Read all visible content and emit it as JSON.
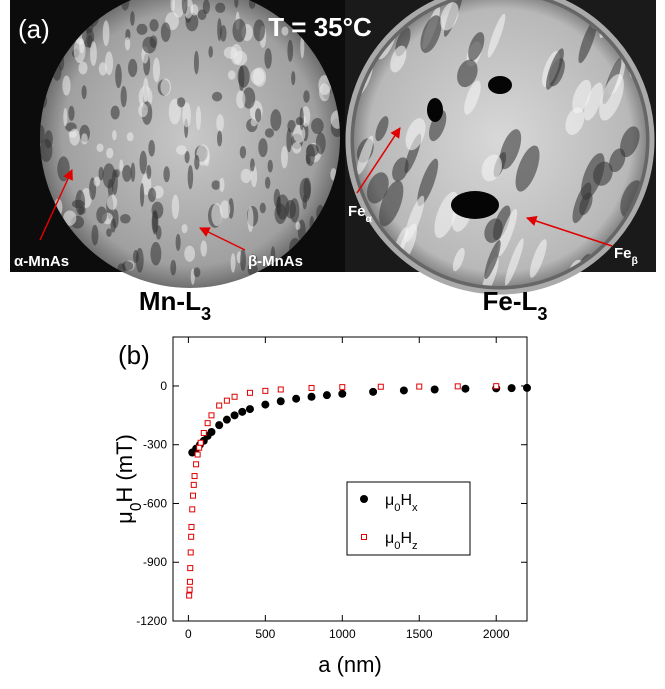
{
  "panel_a": {
    "label": "(a)",
    "temperature": "T = 35°C",
    "left_image": {
      "arrow_labels": [
        [
          {
            "t": "α-MnAs"
          }
        ],
        [
          {
            "t": "β-MnAs"
          }
        ]
      ],
      "caption": [
        {
          "t": "Mn-L"
        },
        {
          "t": "3",
          "sub": true
        }
      ]
    },
    "right_image": {
      "arrow_labels": [
        [
          {
            "t": "Fe"
          },
          {
            "t": "α",
            "sub": true
          }
        ],
        [
          {
            "t": "Fe"
          },
          {
            "t": "β",
            "sub": true
          }
        ]
      ],
      "caption": [
        {
          "t": "Fe-L"
        },
        {
          "t": "3",
          "sub": true
        }
      ]
    }
  },
  "panel_b": {
    "label": "(b)"
  },
  "chart_data": {
    "type": "scatter",
    "x_label": [
      {
        "t": "a (nm)"
      }
    ],
    "y_label": [
      {
        "t": "μ"
      },
      {
        "t": "0",
        "sub": true
      },
      {
        "t": "H (mT)"
      }
    ],
    "xlim": [
      -100,
      2200
    ],
    "xticks": [
      0,
      500,
      1000,
      1500,
      2000
    ],
    "ylim": [
      -1200,
      250
    ],
    "yticks": [
      0,
      -300,
      -600,
      -900,
      -1200
    ],
    "series": [
      {
        "name": [
          {
            "t": "μ"
          },
          {
            "t": "0",
            "sub": true
          },
          {
            "t": "H"
          },
          {
            "t": "x",
            "sub": true
          }
        ],
        "color": "#000000",
        "marker": "filled-circle",
        "x": [
          25,
          50,
          75,
          100,
          125,
          150,
          200,
          250,
          300,
          350,
          400,
          500,
          600,
          700,
          800,
          900,
          1000,
          1200,
          1400,
          1600,
          1800,
          2000,
          2100,
          2200
        ],
        "values": [
          -340,
          -320,
          -300,
          -280,
          -255,
          -235,
          -200,
          -172,
          -150,
          -132,
          -118,
          -95,
          -78,
          -65,
          -55,
          -47,
          -40,
          -30,
          -23,
          -18,
          -14,
          -12,
          -11,
          -10
        ]
      },
      {
        "name": [
          {
            "t": "μ"
          },
          {
            "t": "0",
            "sub": true
          },
          {
            "t": "H"
          },
          {
            "t": "z",
            "sub": true
          }
        ],
        "color": "#e00000",
        "marker": "open-square",
        "x": [
          5,
          8,
          10,
          12,
          15,
          18,
          20,
          25,
          30,
          35,
          40,
          50,
          60,
          70,
          80,
          100,
          125,
          150,
          200,
          250,
          300,
          400,
          500,
          600,
          800,
          1000,
          1250,
          1500,
          1750,
          2000
        ],
        "values": [
          -1070,
          -1040,
          -1000,
          -930,
          -850,
          -770,
          -720,
          -630,
          -560,
          -505,
          -460,
          -400,
          -350,
          -315,
          -290,
          -240,
          -190,
          -150,
          -100,
          -75,
          -55,
          -35,
          -25,
          -18,
          -10,
          -6,
          -4,
          -3,
          -2,
          -1
        ]
      }
    ],
    "legend": "lower-right"
  }
}
